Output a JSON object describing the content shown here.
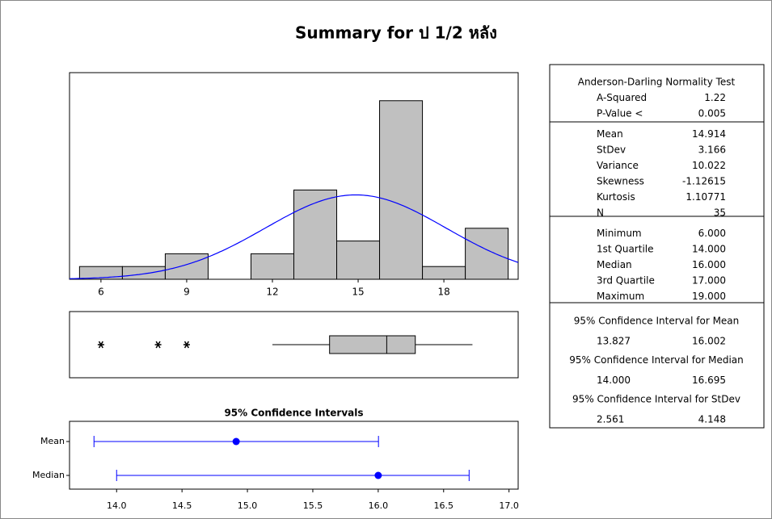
{
  "title": "Summary for ป 1/2 หลัง",
  "chart_data": [
    {
      "type": "histogram",
      "bins": [
        5.25,
        6.75,
        8.25,
        9.75,
        11.25,
        12.75,
        14.25,
        15.75,
        17.25,
        18.75,
        20.25
      ],
      "counts": [
        1,
        1,
        2,
        0,
        2,
        7,
        3,
        14,
        1,
        4
      ],
      "color": "#c0c0c0",
      "xlim": [
        4.9,
        20.6
      ],
      "xticks": [
        6,
        9,
        12,
        15,
        18
      ],
      "ylim": [
        0,
        16.2
      ],
      "fit": {
        "mean": 14.914,
        "stdev": 3.166,
        "n": 35,
        "color": "#0000ff"
      }
    },
    {
      "type": "boxplot",
      "color": "#c0c0c0",
      "xlim": [
        4.9,
        20.6
      ],
      "whisker_low": 12,
      "q1": 14,
      "median": 16,
      "q3": 17,
      "whisker_high": 19,
      "outliers": [
        6,
        8,
        9
      ]
    },
    {
      "type": "interval",
      "title": "95% Confidence Intervals",
      "color": "#0000ff",
      "categories": [
        "Mean",
        "Median"
      ],
      "values": [
        14.914,
        16
      ],
      "lower": [
        13.827,
        14.0
      ],
      "upper": [
        16.002,
        16.695
      ],
      "xlim": [
        13.64,
        17.07
      ],
      "xticks": [
        {
          "value": 14,
          "label": "14.0"
        },
        {
          "value": 14.5,
          "label": "14.5"
        },
        {
          "value": 15,
          "label": "15.0"
        },
        {
          "value": 15.5,
          "label": "15.5"
        },
        {
          "value": 16,
          "label": "16.0"
        },
        {
          "value": 16.5,
          "label": "16.5"
        },
        {
          "value": 17,
          "label": "17.0"
        }
      ]
    }
  ],
  "summary_table": {
    "sections": [
      {
        "heading": "Anderson-Darling Normality Test",
        "rows": [
          [
            "A-Squared",
            "1.22"
          ],
          [
            "P-Value <",
            "0.005"
          ]
        ]
      },
      {
        "rows": [
          [
            "Mean",
            "14.914"
          ],
          [
            "StDev",
            "3.166"
          ],
          [
            "Variance",
            "10.022"
          ],
          [
            "Skewness",
            "-1.12615"
          ],
          [
            "Kurtosis",
            "1.10771"
          ],
          [
            "N",
            "35"
          ]
        ]
      },
      {
        "rows": [
          [
            "Minimum",
            "6.000"
          ],
          [
            "1st Quartile",
            "14.000"
          ],
          [
            "Median",
            "16.000"
          ],
          [
            "3rd Quartile",
            "17.000"
          ],
          [
            "Maximum",
            "19.000"
          ]
        ]
      },
      {
        "heading": "95% Confidence Interval for Mean",
        "rows": [
          [
            "13.827",
            "16.002"
          ]
        ]
      },
      {
        "heading": "95% Confidence Interval for Median",
        "rows": [
          [
            "14.000",
            "16.695"
          ]
        ]
      },
      {
        "heading": "95% Confidence Interval for StDev",
        "rows": [
          [
            "2.561",
            "4.148"
          ]
        ]
      }
    ]
  }
}
